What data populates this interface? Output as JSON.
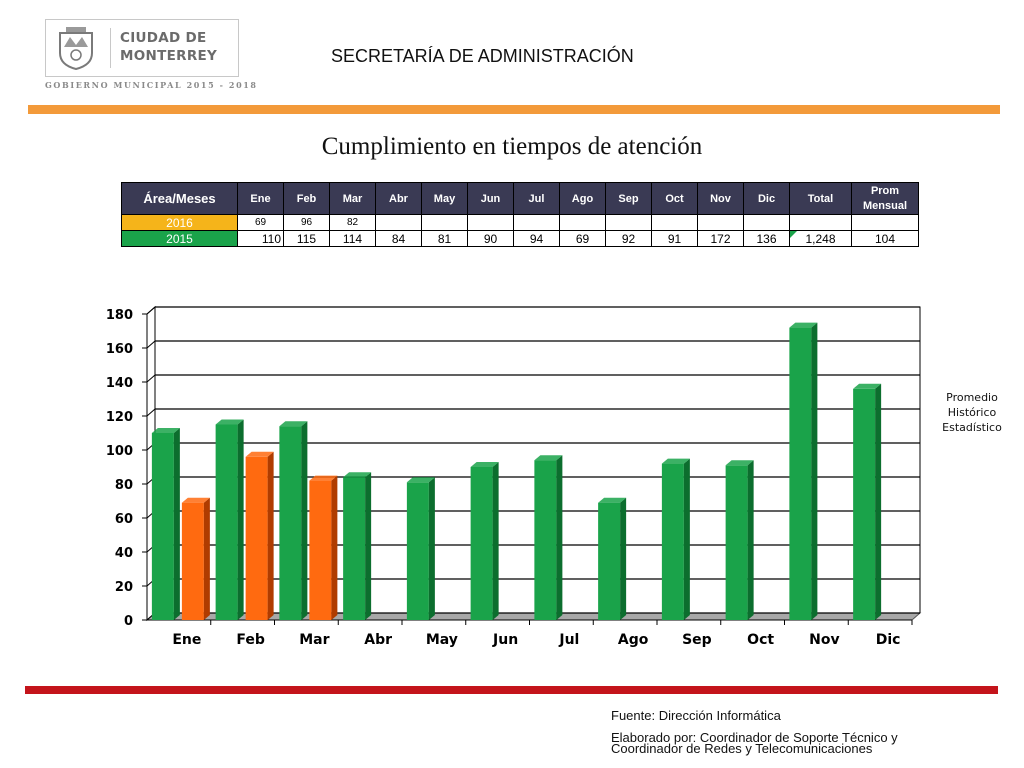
{
  "header": {
    "logo_name_line1": "CIUDAD DE",
    "logo_name_line2": "MONTERREY",
    "gov_line": "GOBIERNO MUNICIPAL 2015 - 2018",
    "title": "SECRETARÍA DE ADMINISTRACIÓN"
  },
  "main_title": "Cumplimiento en tiempos de atención",
  "table": {
    "area_header": "Área/Meses",
    "months": [
      "Ene",
      "Feb",
      "Mar",
      "Abr",
      "May",
      "Jun",
      "Jul",
      "Ago",
      "Sep",
      "Oct",
      "Nov",
      "Dic"
    ],
    "total_header": "Total",
    "prom_header_line1": "Prom",
    "prom_header_line2": "Mensual",
    "rows": [
      {
        "label": "2016",
        "values": [
          "69",
          "96",
          "82",
          "",
          "",
          "",
          "",
          "",
          "",
          "",
          "",
          ""
        ],
        "total": "",
        "prom": ""
      },
      {
        "label": "2015",
        "values": [
          "110",
          "115",
          "114",
          "84",
          "81",
          "90",
          "94",
          "69",
          "92",
          "91",
          "172",
          "136"
        ],
        "total": "1,248",
        "prom": "104"
      }
    ]
  },
  "chart_data": {
    "type": "bar",
    "categories": [
      "Ene",
      "Feb",
      "Mar",
      "Abr",
      "May",
      "Jun",
      "Jul",
      "Ago",
      "Sep",
      "Oct",
      "Nov",
      "Dic"
    ],
    "series": [
      {
        "values": [
          110,
          115,
          114,
          84,
          81,
          90,
          94,
          69,
          92,
          91,
          172,
          136
        ],
        "color": "#1aa34a",
        "side_color": "#0c6e2e"
      },
      {
        "values": [
          69,
          96,
          82,
          null,
          null,
          null,
          null,
          null,
          null,
          null,
          null,
          null
        ],
        "color": "#ff6a10",
        "side_color": "#b03c00"
      }
    ],
    "ylim": [
      0,
      180
    ],
    "yticks": [
      "0",
      "20",
      "40",
      "60",
      "80",
      "100",
      "120",
      "140",
      "160",
      "180"
    ],
    "grid": true,
    "legend_note_line1": "Promedio",
    "legend_note_line2": "Histórico",
    "legend_note_line3": "Estadístico"
  },
  "footer": {
    "source": "Fuente: Dirección  Informática",
    "prepared_line1": "Elaborado por: Coordinador de Soporte Técnico y",
    "prepared_line2": "Coordinador de Redes y Telecomunicaciones"
  }
}
